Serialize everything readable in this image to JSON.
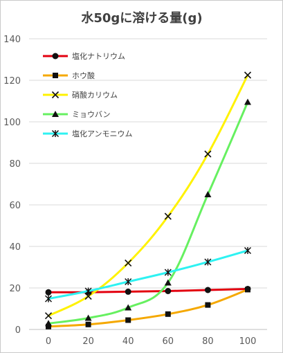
{
  "chart_data": {
    "type": "line",
    "title": "水50gに溶ける量(g)",
    "xlabel": "",
    "ylabel": "",
    "x": [
      0,
      20,
      40,
      60,
      80,
      100
    ],
    "x_ticks": [
      "0",
      "20",
      "40",
      "60",
      "80",
      "100"
    ],
    "ylim": [
      0,
      140
    ],
    "y_ticks": [
      "0",
      "20",
      "40",
      "60",
      "80",
      "100",
      "120",
      "140"
    ],
    "grid": true,
    "legend_position": "top-left",
    "series": [
      {
        "name": "塩化ナトリウム",
        "color": "#e3000f",
        "marker": "circle",
        "smooth": false,
        "values": [
          17.9,
          17.9,
          18.2,
          18.5,
          19.0,
          19.5
        ]
      },
      {
        "name": "ホウ酸",
        "color": "#f5a800",
        "marker": "square",
        "smooth": true,
        "values": [
          1.4,
          2.4,
          4.5,
          7.4,
          11.8,
          19.2
        ]
      },
      {
        "name": "硝酸カリウム",
        "color": "#fff200",
        "marker": "x",
        "smooth": true,
        "values": [
          6.6,
          16.0,
          32.0,
          54.5,
          84.5,
          122.5
        ]
      },
      {
        "name": "ミョウバン",
        "color": "#66f060",
        "marker": "triangle",
        "smooth": true,
        "values": [
          2.9,
          5.5,
          10.5,
          22.5,
          65.0,
          109.5
        ]
      },
      {
        "name": "塩化アンモニウム",
        "color": "#2ef2f2",
        "marker": "star",
        "smooth": true,
        "values": [
          14.8,
          18.5,
          23.0,
          27.5,
          32.5,
          38.0
        ]
      }
    ]
  }
}
